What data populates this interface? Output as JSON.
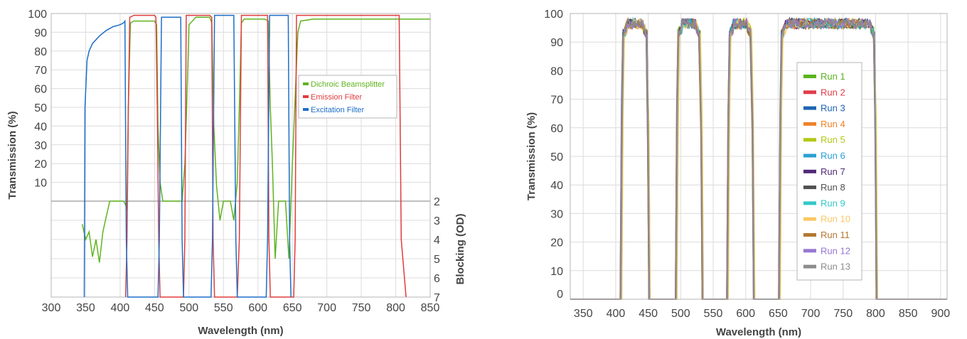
{
  "chart_data": [
    {
      "type": "line",
      "xlabel": "Wavelength (nm)",
      "ylabel": "Transmission (%)",
      "y2label": "Blocking (OD)",
      "xlim": [
        300,
        850
      ],
      "ylim": [
        0,
        100
      ],
      "y2lim": [
        2,
        7
      ],
      "x_ticks": [
        300,
        350,
        400,
        450,
        500,
        550,
        600,
        650,
        700,
        750,
        800,
        850
      ],
      "y_ticks": [
        10,
        20,
        30,
        40,
        50,
        60,
        70,
        80,
        90,
        100
      ],
      "y2_ticks": [
        2,
        3,
        4,
        5,
        6,
        7
      ],
      "grid": true,
      "legend_position": "middle-right",
      "series": [
        {
          "name": "Dichroic Beamsplitter",
          "color": "#5fb41e",
          "points": [
            [
              345,
              3.2
            ],
            [
              350,
              4.0
            ],
            [
              355,
              3.6
            ],
            [
              360,
              4.9
            ],
            [
              365,
              4.0
            ],
            [
              370,
              5.2
            ],
            [
              375,
              3.6
            ],
            [
              380,
              2.8
            ],
            [
              385,
              1.9
            ],
            [
              390,
              2.0
            ],
            [
              395,
              1.6
            ],
            [
              400,
              1.7
            ],
            [
              405,
              1.6
            ],
            [
              408,
              2.2
            ],
            [
              410,
              2.5
            ],
            [
              412,
              50
            ],
            [
              415,
              95
            ],
            [
              420,
              96
            ],
            [
              430,
              96
            ],
            [
              440,
              96
            ],
            [
              450,
              96
            ],
            [
              453,
              94
            ],
            [
              455,
              40
            ],
            [
              458,
              10
            ],
            [
              462,
              2
            ],
            [
              470,
              0
            ],
            [
              480,
              0
            ],
            [
              490,
              2
            ],
            [
              494,
              20
            ],
            [
              497,
              55
            ],
            [
              500,
              94
            ],
            [
              510,
              98
            ],
            [
              520,
              98
            ],
            [
              530,
              98
            ],
            [
              533,
              95
            ],
            [
              536,
              40
            ],
            [
              540,
              8
            ],
            [
              545,
              3
            ],
            [
              550,
              2
            ],
            [
              555,
              0
            ],
            [
              560,
              1
            ],
            [
              565,
              3
            ],
            [
              570,
              10
            ],
            [
              573,
              50
            ],
            [
              576,
              95
            ],
            [
              580,
              97
            ],
            [
              590,
              97
            ],
            [
              600,
              97
            ],
            [
              610,
              97
            ],
            [
              615,
              96
            ],
            [
              618,
              50
            ],
            [
              621,
              20
            ],
            [
              625,
              5
            ],
            [
              630,
              2
            ],
            [
              640,
              2
            ],
            [
              645,
              5
            ],
            [
              650,
              20
            ],
            [
              654,
              55
            ],
            [
              658,
              90
            ],
            [
              662,
              96
            ],
            [
              680,
              97
            ],
            [
              700,
              97
            ],
            [
              720,
              97
            ],
            [
              740,
              97
            ],
            [
              760,
              97
            ],
            [
              780,
              97
            ],
            [
              800,
              97
            ],
            [
              820,
              97
            ],
            [
              840,
              97
            ],
            [
              850,
              97
            ]
          ]
        },
        {
          "name": "Emission Filter",
          "color": "#e03c3c",
          "points": [
            [
              408,
              7
            ],
            [
              410,
              4
            ],
            [
              412,
              50
            ],
            [
              414,
              98
            ],
            [
              420,
              99
            ],
            [
              450,
              99
            ],
            [
              452,
              98
            ],
            [
              454,
              50
            ],
            [
              456,
              4
            ],
            [
              458,
              7
            ],
            [
              492,
              7
            ],
            [
              494,
              4
            ],
            [
              496,
              99
            ],
            [
              510,
              99
            ],
            [
              530,
              99
            ],
            [
              533,
              98
            ],
            [
              535,
              4
            ],
            [
              537,
              7
            ],
            [
              570,
              7
            ],
            [
              573,
              4
            ],
            [
              576,
              99
            ],
            [
              590,
              99
            ],
            [
              610,
              99
            ],
            [
              614,
              99
            ],
            [
              616,
              4
            ],
            [
              618,
              7
            ],
            [
              652,
              7
            ],
            [
              654,
              4
            ],
            [
              656,
              99
            ],
            [
              700,
              99
            ],
            [
              750,
              99
            ],
            [
              800,
              99
            ],
            [
              805,
              99
            ],
            [
              808,
              4
            ],
            [
              815,
              7
            ]
          ]
        },
        {
          "name": "Excitation Filter",
          "color": "#1e6ec8",
          "points": [
            [
              348,
              7
            ],
            [
              349,
              50
            ],
            [
              352,
              75
            ],
            [
              355,
              80
            ],
            [
              360,
              84
            ],
            [
              370,
              88
            ],
            [
              380,
              91
            ],
            [
              390,
              93
            ],
            [
              400,
              94
            ],
            [
              405,
              95
            ],
            [
              407,
              96
            ],
            [
              409,
              4
            ],
            [
              411,
              7
            ],
            [
              455,
              7
            ],
            [
              457,
              4
            ],
            [
              460,
              98
            ],
            [
              470,
              98
            ],
            [
              480,
              98
            ],
            [
              488,
              98
            ],
            [
              490,
              4
            ],
            [
              492,
              7
            ],
            [
              532,
              7
            ],
            [
              534,
              4
            ],
            [
              537,
              99
            ],
            [
              550,
              99
            ],
            [
              565,
              99
            ],
            [
              568,
              4
            ],
            [
              570,
              7
            ],
            [
              612,
              7
            ],
            [
              614,
              4
            ],
            [
              617,
              99
            ],
            [
              630,
              99
            ],
            [
              640,
              99
            ],
            [
              644,
              99
            ],
            [
              646,
              4
            ],
            [
              648,
              7
            ]
          ]
        }
      ]
    },
    {
      "type": "line",
      "xlabel": "Wavelength (nm)",
      "ylabel": "Transmission (%)",
      "xlim": [
        330,
        910
      ],
      "ylim": [
        0,
        100
      ],
      "x_ticks": [
        350,
        400,
        450,
        500,
        550,
        600,
        650,
        700,
        750,
        800,
        850,
        900
      ],
      "y_ticks": [
        0,
        10,
        20,
        30,
        40,
        50,
        60,
        70,
        80,
        90,
        100
      ],
      "grid": true,
      "legend_position": "center",
      "passbands": [
        [
          410,
          450
        ],
        [
          495,
          532
        ],
        [
          574,
          611
        ],
        [
          654,
          800
        ]
      ],
      "series": [
        {
          "name": "Run 1",
          "color": "#5ab41e"
        },
        {
          "name": "Run 2",
          "color": "#e03c4a"
        },
        {
          "name": "Run 3",
          "color": "#1e64b4"
        },
        {
          "name": "Run 4",
          "color": "#f08228"
        },
        {
          "name": "Run 5",
          "color": "#b4c814"
        },
        {
          "name": "Run 6",
          "color": "#28a0d2"
        },
        {
          "name": "Run 7",
          "color": "#502878"
        },
        {
          "name": "Run 8",
          "color": "#505050"
        },
        {
          "name": "Run 9",
          "color": "#32c8c8"
        },
        {
          "name": "Run 10",
          "color": "#fac864"
        },
        {
          "name": "Run 11",
          "color": "#b47832"
        },
        {
          "name": "Run 12",
          "color": "#9678d2"
        },
        {
          "name": "Run 13",
          "color": "#8c8c8c"
        }
      ]
    }
  ]
}
